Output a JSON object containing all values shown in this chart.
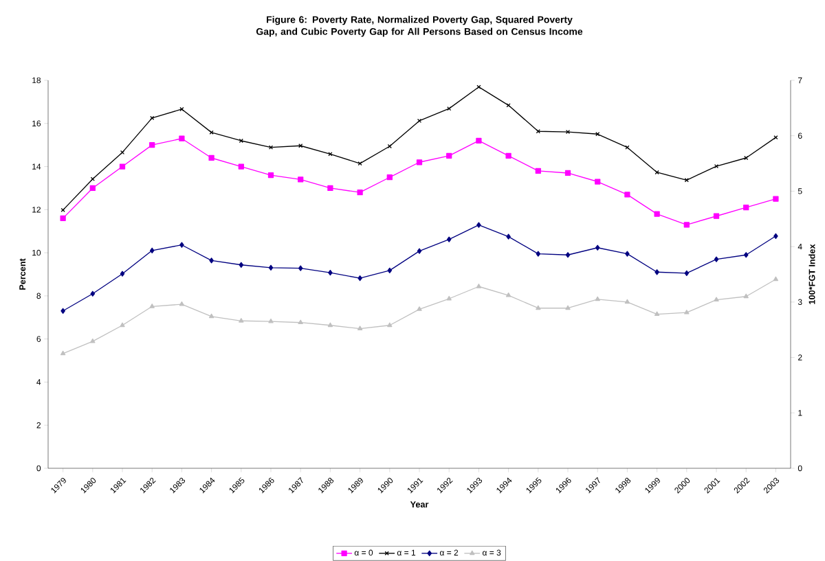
{
  "chart_data": {
    "type": "line",
    "title": "Figure 6: Poverty Rate, Normalized Poverty Gap, Squared Poverty Gap, and Cubic Poverty Gap for All Persons Based on Census Income",
    "xlabel": "Year",
    "ylabel": "Percent",
    "y2label": "100*FGT Index",
    "categories": [
      "1979",
      "1980",
      "1981",
      "1982",
      "1983",
      "1984",
      "1985",
      "1986",
      "1987",
      "1988",
      "1989",
      "1990",
      "1991",
      "1992",
      "1993",
      "1994",
      "1995",
      "1996",
      "1997",
      "1998",
      "1999",
      "2000",
      "2001",
      "2002",
      "2003"
    ],
    "ylim": [
      0,
      18
    ],
    "yticks": [
      0,
      2,
      4,
      6,
      8,
      10,
      12,
      14,
      16,
      18
    ],
    "y2lim": [
      0,
      7
    ],
    "y2ticks": [
      0,
      1,
      2,
      3,
      4,
      5,
      6,
      7
    ],
    "legend": "bottom",
    "series": [
      {
        "name": "α = 0",
        "color": "#ff00ff",
        "marker": "square",
        "values": [
          11.6,
          13.0,
          14.0,
          15.0,
          15.3,
          14.4,
          14.0,
          13.6,
          13.4,
          13.0,
          12.8,
          13.5,
          14.2,
          14.5,
          15.2,
          14.5,
          13.8,
          13.7,
          13.3,
          12.7,
          11.8,
          11.3,
          11.7,
          12.1,
          12.5
        ]
      },
      {
        "name": "α = 1",
        "color": "#000000",
        "marker": "cross",
        "axis": "y2",
        "values": [
          4.66,
          5.22,
          5.7,
          6.32,
          6.48,
          6.06,
          5.91,
          5.79,
          5.82,
          5.67,
          5.5,
          5.81,
          6.27,
          6.49,
          6.88,
          6.55,
          6.08,
          6.07,
          6.03,
          5.79,
          5.34,
          5.2,
          5.45,
          5.6,
          5.97
        ]
      },
      {
        "name": "α = 2",
        "color": "#000080",
        "marker": "diamond",
        "axis": "y2",
        "values": [
          2.84,
          3.15,
          3.51,
          3.93,
          4.03,
          3.75,
          3.67,
          3.62,
          3.61,
          3.53,
          3.43,
          3.57,
          3.92,
          4.13,
          4.39,
          4.18,
          3.87,
          3.85,
          3.98,
          3.87,
          3.54,
          3.52,
          3.77,
          3.85,
          4.19
        ]
      },
      {
        "name": "α = 3",
        "color": "#c0c0c0",
        "marker": "triangle",
        "axis": "y2",
        "values": [
          2.07,
          2.29,
          2.58,
          2.92,
          2.96,
          2.74,
          2.66,
          2.65,
          2.63,
          2.58,
          2.52,
          2.58,
          2.87,
          3.06,
          3.28,
          3.12,
          2.89,
          2.89,
          3.05,
          3.0,
          2.78,
          2.81,
          3.04,
          3.1,
          3.41
        ]
      }
    ]
  }
}
